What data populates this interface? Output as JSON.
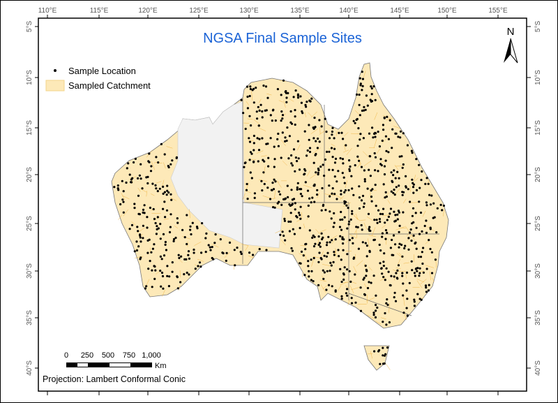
{
  "map": {
    "title": "NGSA Final Sample Sites",
    "north_label": "N",
    "projection": "Projection: Lambert Conformal Conic",
    "legend": [
      {
        "label": "Sample Location",
        "symbol": "dot",
        "color": "#000000"
      },
      {
        "label": "Sampled Catchment",
        "symbol": "fill",
        "color": "#fde9b8"
      }
    ],
    "unsampled_color": "#f2f2f2",
    "catchment_line_color": "#f0b84a",
    "scale_bar": {
      "labels": [
        "0",
        "250",
        "500",
        "750",
        "1,000"
      ],
      "unit": "Km"
    },
    "longitude_ticks": [
      "110°E",
      "115°E",
      "120°E",
      "125°E",
      "130°E",
      "135°E",
      "140°E",
      "145°E",
      "150°E",
      "155°E"
    ],
    "latitude_ticks": [
      "5°S",
      "10°S",
      "15°S",
      "20°S",
      "25°S",
      "30°S",
      "35°S",
      "40°S"
    ]
  }
}
